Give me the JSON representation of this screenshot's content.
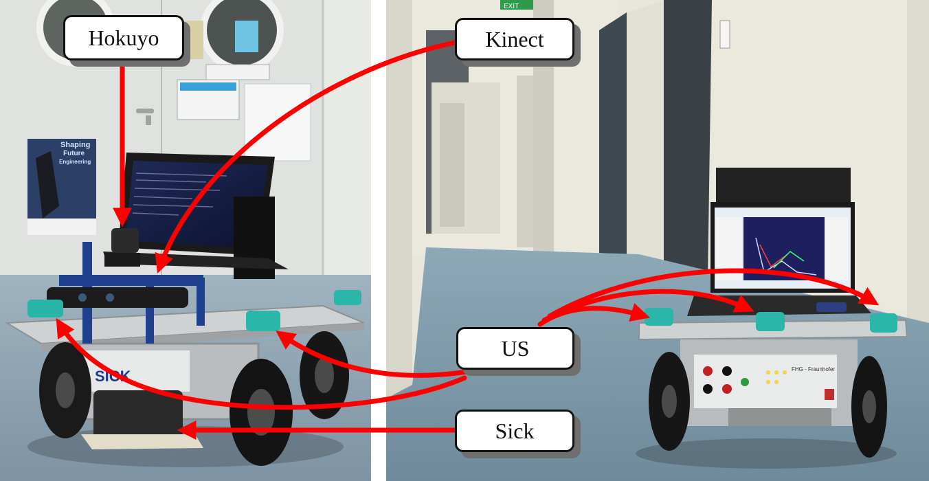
{
  "labels": {
    "hokuyo": "Hokuyo",
    "kinect": "Kinect",
    "us": "US",
    "sick": "Sick"
  },
  "photo_text": {
    "sick_logo": "SICK",
    "poster_line1": "Shaping",
    "poster_line2": "Future",
    "poster_line3": "Engineering",
    "panel_title": "FHG - Fraunhofer",
    "exit_sign": "EXIT"
  },
  "colors": {
    "arrow": "#ff0000",
    "callout_border": "#111111",
    "callout_shadow": "#6f6f6f"
  }
}
